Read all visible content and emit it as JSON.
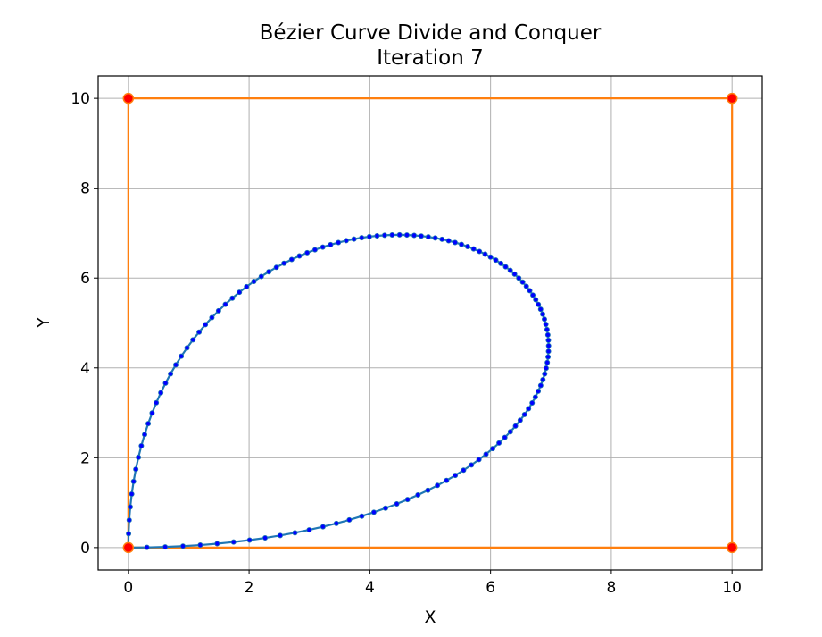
{
  "chart_data": {
    "type": "line",
    "title": "Bézier Curve Divide and Conquer",
    "subtitle": "Iteration 7",
    "xlabel": "X",
    "ylabel": "Y",
    "xlim": [
      -0.5,
      10.5
    ],
    "ylim": [
      -0.5,
      10.5
    ],
    "xticks": [
      0,
      2,
      4,
      6,
      8,
      10
    ],
    "yticks": [
      0,
      2,
      4,
      6,
      8,
      10
    ],
    "grid": true,
    "control_polygon": {
      "points": [
        [
          0,
          0
        ],
        [
          0,
          10
        ],
        [
          10,
          10
        ],
        [
          10,
          0
        ],
        [
          0,
          0
        ]
      ],
      "line_color": "#ff7f0e",
      "marker_color": "#ff0000"
    },
    "bezier_curve": {
      "control_points": [
        [
          0,
          0
        ],
        [
          0,
          10
        ],
        [
          10,
          10
        ],
        [
          10,
          0
        ],
        [
          0,
          0
        ]
      ],
      "sample_count": 129,
      "line_color": "#1f77b4",
      "marker_color": "#0000ff"
    }
  }
}
